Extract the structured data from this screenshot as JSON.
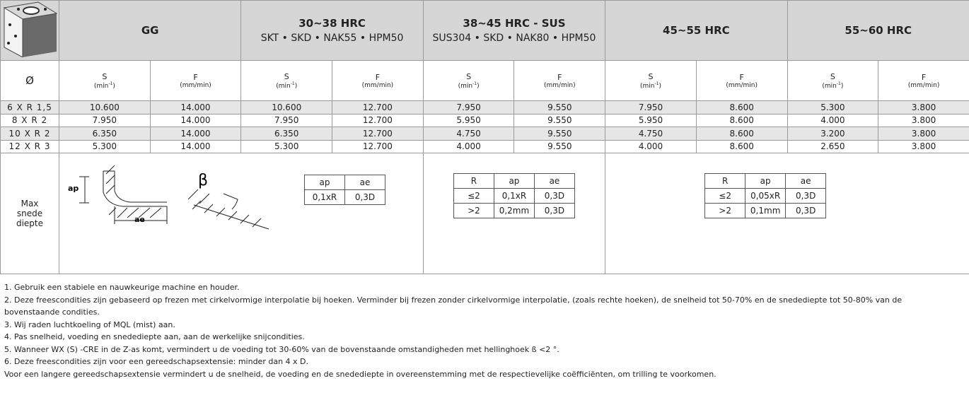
{
  "header": {
    "groups": [
      {
        "title": "GG"
      },
      {
        "title": "30~38 HRC",
        "subtitle": "SKT • SKD • NAK55 • HPM50"
      },
      {
        "title": "38~45 HRC - SUS",
        "subtitle": "SUS304 • SKD • NAK80 • HPM50"
      },
      {
        "title": "45~55 HRC"
      },
      {
        "title": "55~60 HRC"
      }
    ]
  },
  "subheader": {
    "diameter": "Ø",
    "columns": [
      {
        "label": "S",
        "unit": [
          "(min",
          "-1",
          ")"
        ]
      },
      {
        "label": "F",
        "unit": [
          "(mm/min)"
        ]
      }
    ]
  },
  "rows": [
    {
      "label": "6 X R 1,5",
      "values": [
        "10.600",
        "14.000",
        "10.600",
        "12.700",
        "7.950",
        "9.550",
        "7.950",
        "8.600",
        "5.300",
        "3.800"
      ]
    },
    {
      "label": "8 X R 2",
      "values": [
        "7.950",
        "14.000",
        "7.950",
        "12.700",
        "5.950",
        "9.550",
        "5.950",
        "8.600",
        "4.000",
        "3.800"
      ]
    },
    {
      "label": "10 X R 2",
      "values": [
        "6.350",
        "14.000",
        "6.350",
        "12.700",
        "4.750",
        "9.550",
        "4.750",
        "8.600",
        "3.200",
        "3.800"
      ]
    },
    {
      "label": "12 X R 3",
      "values": [
        "5.300",
        "14.000",
        "5.300",
        "12.700",
        "4.000",
        "9.550",
        "4.000",
        "8.600",
        "2.650",
        "3.800"
      ]
    }
  ],
  "max_depth": {
    "label": [
      "Max",
      "snede",
      "diepte"
    ],
    "diagram": {
      "ap": "ap",
      "ae": "ae",
      "beta": "β"
    },
    "tables": [
      {
        "header": [
          "ap",
          "ae"
        ],
        "rows": [
          [
            "0,1xR",
            "0,3D"
          ]
        ]
      },
      {
        "header": [
          "R",
          "ap",
          "ae"
        ],
        "rows": [
          [
            "≤2",
            "0,1xR",
            "0,3D"
          ],
          [
            ">2",
            "0,2mm",
            "0,3D"
          ]
        ]
      },
      {
        "header": [
          "R",
          "ap",
          "ae"
        ],
        "rows": [
          [
            "≤2",
            "0,05xR",
            "0,3D"
          ],
          [
            ">2",
            "0,1mm",
            "0,3D"
          ]
        ]
      }
    ]
  },
  "notes": [
    [
      "1. Gebruik een stabiele en nauwkeurige machine en houder."
    ],
    [
      "2. Deze freescondities zijn gebaseerd op frezen met cirkelvormige interpolatie bij hoeken. Verminder bij frezen zonder cirkelvormige interpolatie, (zoals rechte hoeken), de snelheid tot 50-70% en de snedediepte tot 50-80% van de bovenstaande condities."
    ],
    [
      "3. Wij raden luchtkoeling of MQL (mist) aan."
    ],
    [
      "4. Pas snelheid, voeding en snedediepte aan, aan de werkelijke snijcondities."
    ],
    [
      "5. Wanneer WX (S) -CRE in de Z-as komt, vermindert u de voeding tot 30-60% van de bovenstaande omstandigheden met hellinghoek ß <2 °."
    ],
    [
      "6. Deze freescondities zijn voor een gereedschapsextensie: minder dan 4 x D.",
      "Voor een langere gereedschapsextensie vermindert u de snelheid, de voeding en de snedediepte in overeenstemming met de respectievelijke coëfficiënten, om trilling te voorkomen."
    ]
  ]
}
